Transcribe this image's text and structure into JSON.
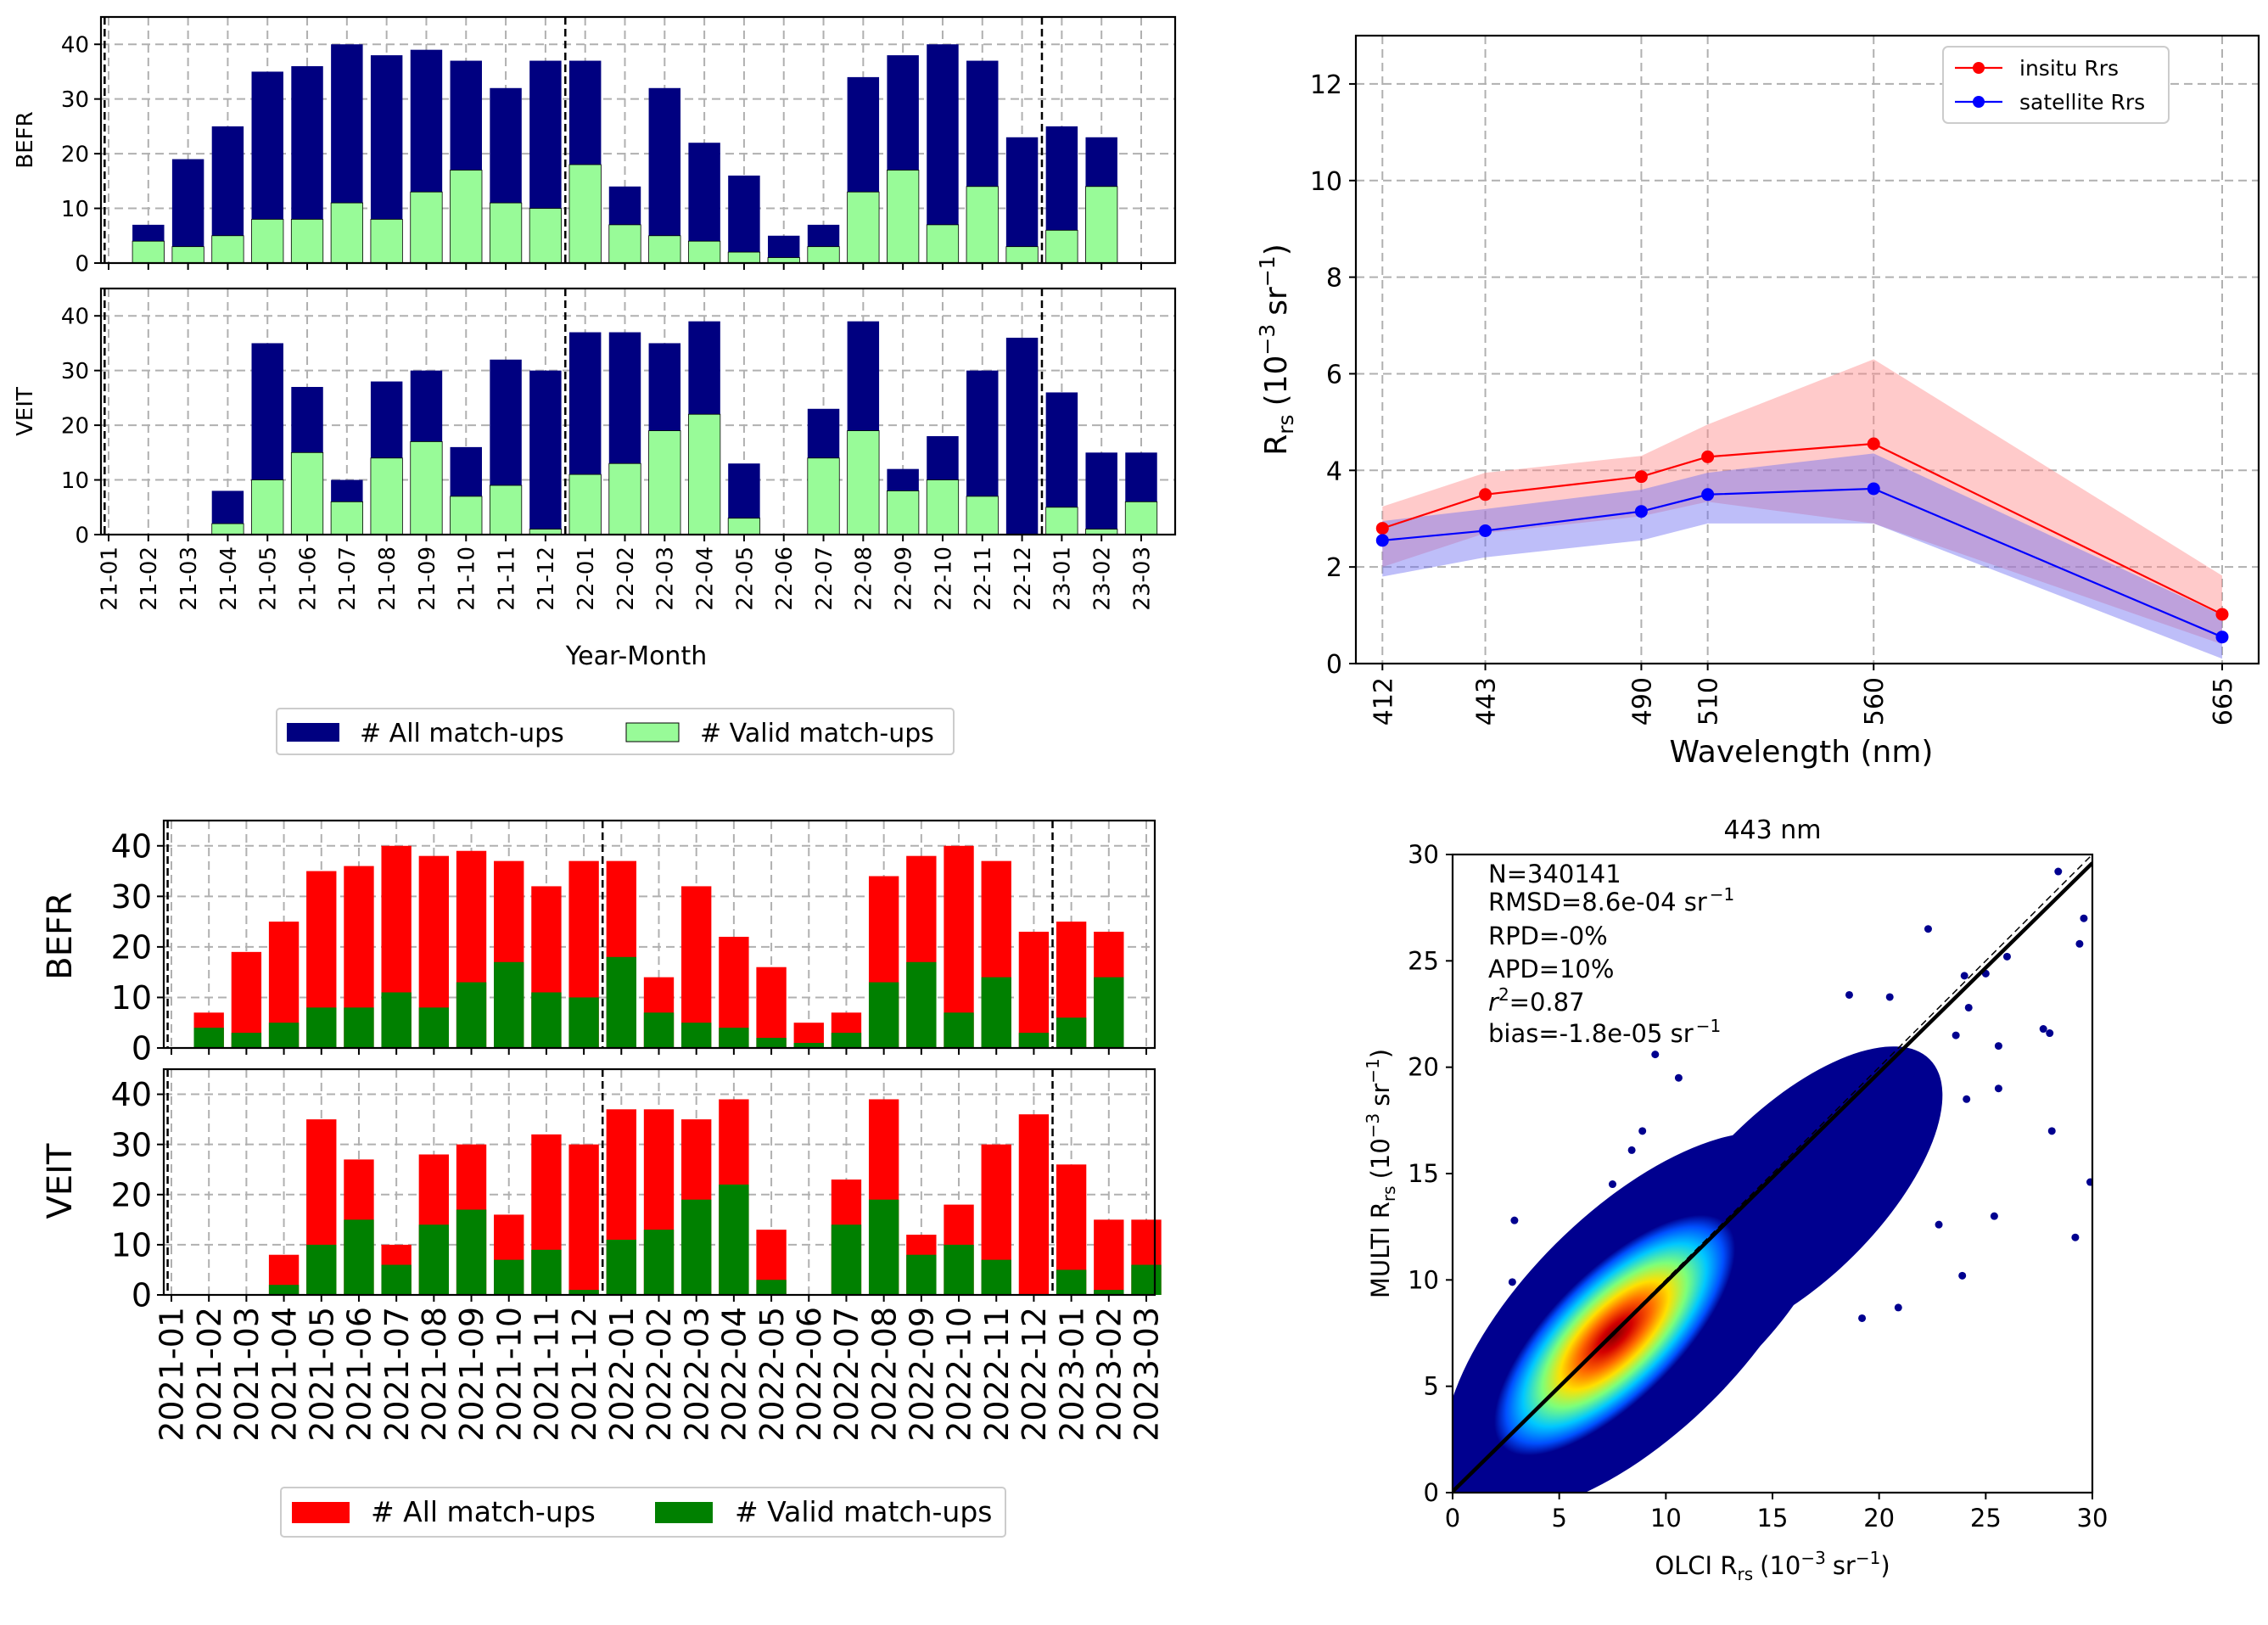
{
  "chart_data": [
    {
      "id": "top_left",
      "type": "bar",
      "subtype": "overlaid",
      "categories": [
        "21-01",
        "21-02",
        "21-03",
        "21-04",
        "21-05",
        "21-06",
        "21-07",
        "21-08",
        "21-09",
        "21-10",
        "21-11",
        "21-12",
        "22-01",
        "22-02",
        "22-03",
        "22-04",
        "22-05",
        "22-06",
        "22-07",
        "22-08",
        "22-09",
        "22-10",
        "22-11",
        "22-12",
        "23-01",
        "23-02",
        "23-03"
      ],
      "xlabel": "Year-Month",
      "ylim": [
        0,
        45
      ],
      "yticks": [
        0,
        10,
        20,
        30,
        40
      ],
      "vlines_at_category": [
        "21-01",
        "22-01",
        "23-01"
      ],
      "colors": {
        "all": "#000080",
        "valid": "#98fb98"
      },
      "legend": {
        "all": "# All match-ups",
        "valid": "# Valid match-ups",
        "placement": "bottom-center"
      },
      "panels": [
        {
          "ylabel": "BEFR",
          "series": [
            {
              "name": "# All match-ups",
              "values": [
                0,
                7,
                19,
                25,
                35,
                36,
                40,
                38,
                39,
                37,
                32,
                37,
                37,
                14,
                32,
                22,
                16,
                5,
                7,
                34,
                38,
                40,
                37,
                23,
                25,
                23,
                null
              ]
            },
            {
              "name": "# Valid match-ups",
              "values": [
                0,
                4,
                3,
                5,
                8,
                8,
                11,
                8,
                13,
                17,
                11,
                10,
                18,
                7,
                5,
                4,
                2,
                1,
                3,
                13,
                17,
                7,
                14,
                3,
                6,
                14,
                null
              ]
            }
          ]
        },
        {
          "ylabel": "VEIT",
          "series": [
            {
              "name": "# All match-ups",
              "values": [
                0,
                0,
                0,
                8,
                35,
                27,
                10,
                28,
                30,
                16,
                32,
                30,
                37,
                37,
                35,
                39,
                13,
                0,
                23,
                39,
                12,
                18,
                30,
                36,
                26,
                15,
                15
              ]
            },
            {
              "name": "# Valid match-ups",
              "values": [
                0,
                0,
                0,
                2,
                10,
                15,
                6,
                14,
                17,
                7,
                9,
                1,
                11,
                13,
                19,
                22,
                3,
                0,
                14,
                19,
                8,
                10,
                7,
                0,
                5,
                1,
                6
              ]
            }
          ]
        }
      ]
    },
    {
      "id": "bottom_left",
      "type": "bar",
      "subtype": "overlaid",
      "categories": [
        "2021-01",
        "2021-02",
        "2021-03",
        "2021-04",
        "2021-05",
        "2021-06",
        "2021-07",
        "2021-08",
        "2021-09",
        "2021-10",
        "2021-11",
        "2021-12",
        "2022-01",
        "2022-02",
        "2022-03",
        "2022-04",
        "2022-05",
        "2022-06",
        "2022-07",
        "2022-08",
        "2022-09",
        "2022-10",
        "2022-11",
        "2022-12",
        "2023-01",
        "2023-02",
        "2023-03"
      ],
      "xlabel": "",
      "ylim": [
        0,
        45
      ],
      "yticks": [
        0,
        10,
        20,
        30,
        40
      ],
      "vlines_at_category": [
        "2021-01",
        "2022-01",
        "2023-01"
      ],
      "colors": {
        "all": "#ff0000",
        "valid": "#008000"
      },
      "legend": {
        "all": "# All match-ups",
        "valid": "# Valid match-ups",
        "placement": "bottom-center"
      },
      "panels": [
        {
          "ylabel": "BEFR",
          "series": [
            {
              "name": "# All match-ups",
              "values": [
                0,
                7,
                19,
                25,
                35,
                36,
                40,
                38,
                39,
                37,
                32,
                37,
                37,
                14,
                32,
                22,
                16,
                5,
                7,
                34,
                38,
                40,
                37,
                23,
                25,
                23,
                null
              ]
            },
            {
              "name": "# Valid match-ups",
              "values": [
                0,
                4,
                3,
                5,
                8,
                8,
                11,
                8,
                13,
                17,
                11,
                10,
                18,
                7,
                5,
                4,
                2,
                1,
                3,
                13,
                17,
                7,
                14,
                3,
                6,
                14,
                null
              ]
            }
          ]
        },
        {
          "ylabel": "VEIT",
          "series": [
            {
              "name": "# All match-ups",
              "values": [
                0,
                0,
                0,
                8,
                35,
                27,
                10,
                28,
                30,
                16,
                32,
                30,
                37,
                37,
                35,
                39,
                13,
                0,
                23,
                39,
                12,
                18,
                30,
                36,
                26,
                15,
                15
              ]
            },
            {
              "name": "# Valid match-ups",
              "values": [
                0,
                0,
                0,
                2,
                10,
                15,
                6,
                14,
                17,
                7,
                9,
                1,
                11,
                13,
                19,
                22,
                3,
                0,
                14,
                19,
                8,
                10,
                7,
                0,
                5,
                1,
                6
              ]
            }
          ]
        }
      ]
    },
    {
      "id": "top_right",
      "type": "line",
      "title": "",
      "xlabel": "Wavelength (nm)",
      "ylabel_main": "R",
      "ylabel_sub": "rs",
      "ylabel_unit": "(10",
      "ylabel_exp": "−3",
      "ylabel_tail": "sr",
      "ylabel_exp2": "−1",
      "ylabel_close": ")",
      "x": [
        412,
        443,
        490,
        510,
        560,
        665
      ],
      "x_tick_labels": [
        "412",
        "443",
        "490",
        "510",
        "560",
        "665"
      ],
      "xlim": [
        404,
        676
      ],
      "ylim": [
        0,
        13
      ],
      "yticks": [
        0,
        2,
        4,
        6,
        8,
        10,
        12
      ],
      "series": [
        {
          "name": "insitu Rrs",
          "color": "#ff0000",
          "band_color": "#ff8a8a",
          "values": [
            2.8,
            3.5,
            3.87,
            4.28,
            4.55,
            1.02
          ],
          "band_low": [
            2.0,
            2.7,
            3.05,
            3.35,
            2.9,
            0.4
          ],
          "band_high": [
            3.25,
            3.95,
            4.3,
            4.95,
            6.3,
            1.82
          ]
        },
        {
          "name": "satellite Rrs",
          "color": "#0000ff",
          "band_color": "#6f6ff2",
          "values": [
            2.55,
            2.75,
            3.15,
            3.5,
            3.62,
            0.55
          ],
          "band_low": [
            1.8,
            2.2,
            2.55,
            2.9,
            2.9,
            0.1
          ],
          "band_high": [
            2.95,
            3.2,
            3.6,
            3.95,
            4.35,
            1.0
          ]
        }
      ],
      "legend": {
        "placement": "top-right"
      }
    },
    {
      "id": "bottom_right",
      "type": "scatter",
      "title": "443 nm",
      "xlabel_main": "OLCI R",
      "xlabel_sub": "rs",
      "xlabel_unit": "(10",
      "xlabel_exp": "−3",
      "xlabel_tail": "sr",
      "xlabel_exp2": "−1",
      "xlabel_close": ")",
      "ylabel_main": "MULTI R",
      "ylabel_sub": "rs",
      "ylabel_unit": "(10",
      "ylabel_exp": "−3",
      "ylabel_tail": "sr",
      "ylabel_exp2": "−1",
      "ylabel_close": ")",
      "xlim": [
        0,
        30
      ],
      "ylim": [
        0,
        30
      ],
      "xticks": [
        0,
        5,
        10,
        15,
        20,
        25,
        30
      ],
      "yticks": [
        0,
        5,
        10,
        15,
        20,
        25,
        30
      ],
      "stats": {
        "n": "N=340141",
        "rmsd": "RMSD=8.6e-04 sr",
        "rmsd_exp": "−1",
        "rpd": "RPD=-0%",
        "apd": "APD=10%",
        "r2_prefix": "r",
        "r2_exp": "2",
        "r2_value": "=0.87",
        "bias": "bias=-1.8e-05 sr",
        "bias_exp": "−1"
      },
      "regression_line": {
        "slope": 0.985,
        "intercept": 0.05,
        "color": "#000000"
      },
      "identity_line": {
        "slope": 1.0,
        "intercept": 0.0,
        "style": "dashed"
      },
      "density_colormap": "jet",
      "outlier_points": [
        [
          28.4,
          29.2
        ],
        [
          29.6,
          27.0
        ],
        [
          29.4,
          25.8
        ],
        [
          27.7,
          21.8
        ],
        [
          28.0,
          21.6
        ],
        [
          28.1,
          17.0
        ],
        [
          29.2,
          12.0
        ],
        [
          29.9,
          14.6
        ],
        [
          25.6,
          21.0
        ],
        [
          24.2,
          22.8
        ],
        [
          23.6,
          21.5
        ],
        [
          25.0,
          24.4
        ],
        [
          24.0,
          24.3
        ],
        [
          22.3,
          26.5
        ],
        [
          20.5,
          23.3
        ],
        [
          18.6,
          23.4
        ],
        [
          25.6,
          19.0
        ],
        [
          25.4,
          13.0
        ],
        [
          23.9,
          10.2
        ],
        [
          21.6,
          15.9
        ],
        [
          19.8,
          13.4
        ],
        [
          20.9,
          8.7
        ],
        [
          19.2,
          8.2
        ],
        [
          17.2,
          16.6
        ],
        [
          17.6,
          14.2
        ],
        [
          15.9,
          17.5
        ],
        [
          16.0,
          12.7
        ],
        [
          14.8,
          13.8
        ],
        [
          10.6,
          19.5
        ],
        [
          9.5,
          20.6
        ],
        [
          8.9,
          17.0
        ],
        [
          8.4,
          16.1
        ],
        [
          7.5,
          14.5
        ],
        [
          2.9,
          12.8
        ],
        [
          2.8,
          9.9
        ],
        [
          3.4,
          7.8
        ],
        [
          1.0,
          6.0
        ],
        [
          22.8,
          12.6
        ],
        [
          24.1,
          18.5
        ],
        [
          26.0,
          25.2
        ],
        [
          18.8,
          20.1
        ],
        [
          21.5,
          19.7
        ],
        [
          13.0,
          16.4
        ],
        [
          16.3,
          18.2
        ]
      ]
    }
  ]
}
